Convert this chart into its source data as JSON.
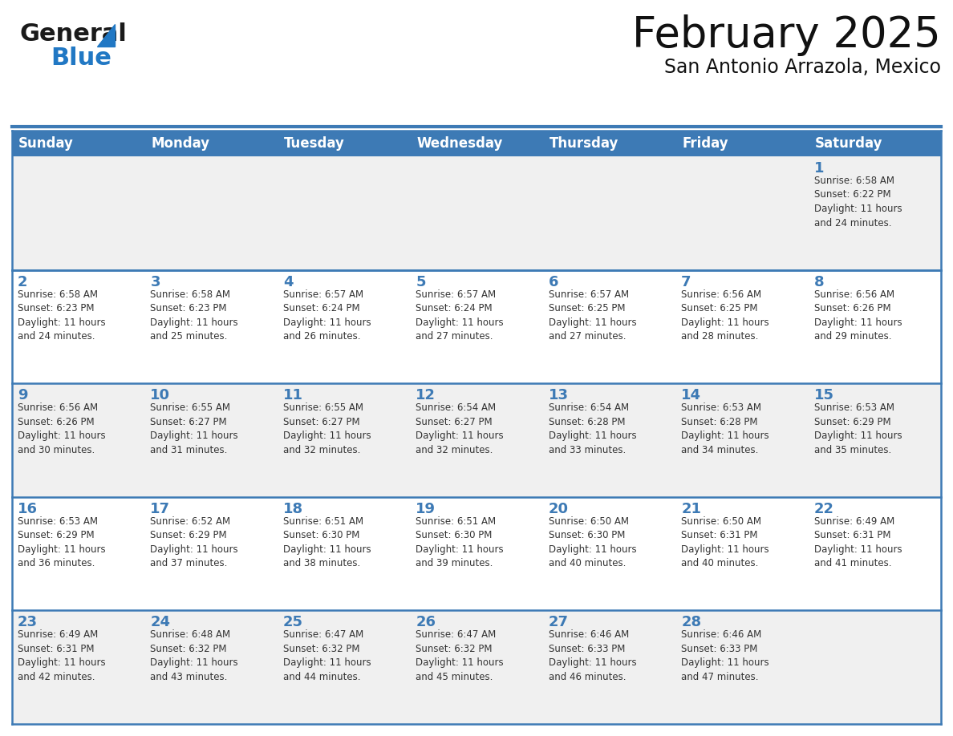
{
  "title": "February 2025",
  "subtitle": "San Antonio Arrazola, Mexico",
  "header_bg_color": "#3d7ab5",
  "header_text_color": "#ffffff",
  "row_bg_alt": "#f0f0f0",
  "row_bg_white": "#ffffff",
  "day_number_color": "#3d7ab5",
  "info_text_color": "#333333",
  "border_color": "#3d7ab5",
  "days_of_week": [
    "Sunday",
    "Monday",
    "Tuesday",
    "Wednesday",
    "Thursday",
    "Friday",
    "Saturday"
  ],
  "calendar_data": [
    [
      null,
      null,
      null,
      null,
      null,
      null,
      {
        "day": 1,
        "sunrise": "6:58 AM",
        "sunset": "6:22 PM",
        "daylight": "11 hours\nand 24 minutes."
      }
    ],
    [
      {
        "day": 2,
        "sunrise": "6:58 AM",
        "sunset": "6:23 PM",
        "daylight": "11 hours\nand 24 minutes."
      },
      {
        "day": 3,
        "sunrise": "6:58 AM",
        "sunset": "6:23 PM",
        "daylight": "11 hours\nand 25 minutes."
      },
      {
        "day": 4,
        "sunrise": "6:57 AM",
        "sunset": "6:24 PM",
        "daylight": "11 hours\nand 26 minutes."
      },
      {
        "day": 5,
        "sunrise": "6:57 AM",
        "sunset": "6:24 PM",
        "daylight": "11 hours\nand 27 minutes."
      },
      {
        "day": 6,
        "sunrise": "6:57 AM",
        "sunset": "6:25 PM",
        "daylight": "11 hours\nand 27 minutes."
      },
      {
        "day": 7,
        "sunrise": "6:56 AM",
        "sunset": "6:25 PM",
        "daylight": "11 hours\nand 28 minutes."
      },
      {
        "day": 8,
        "sunrise": "6:56 AM",
        "sunset": "6:26 PM",
        "daylight": "11 hours\nand 29 minutes."
      }
    ],
    [
      {
        "day": 9,
        "sunrise": "6:56 AM",
        "sunset": "6:26 PM",
        "daylight": "11 hours\nand 30 minutes."
      },
      {
        "day": 10,
        "sunrise": "6:55 AM",
        "sunset": "6:27 PM",
        "daylight": "11 hours\nand 31 minutes."
      },
      {
        "day": 11,
        "sunrise": "6:55 AM",
        "sunset": "6:27 PM",
        "daylight": "11 hours\nand 32 minutes."
      },
      {
        "day": 12,
        "sunrise": "6:54 AM",
        "sunset": "6:27 PM",
        "daylight": "11 hours\nand 32 minutes."
      },
      {
        "day": 13,
        "sunrise": "6:54 AM",
        "sunset": "6:28 PM",
        "daylight": "11 hours\nand 33 minutes."
      },
      {
        "day": 14,
        "sunrise": "6:53 AM",
        "sunset": "6:28 PM",
        "daylight": "11 hours\nand 34 minutes."
      },
      {
        "day": 15,
        "sunrise": "6:53 AM",
        "sunset": "6:29 PM",
        "daylight": "11 hours\nand 35 minutes."
      }
    ],
    [
      {
        "day": 16,
        "sunrise": "6:53 AM",
        "sunset": "6:29 PM",
        "daylight": "11 hours\nand 36 minutes."
      },
      {
        "day": 17,
        "sunrise": "6:52 AM",
        "sunset": "6:29 PM",
        "daylight": "11 hours\nand 37 minutes."
      },
      {
        "day": 18,
        "sunrise": "6:51 AM",
        "sunset": "6:30 PM",
        "daylight": "11 hours\nand 38 minutes."
      },
      {
        "day": 19,
        "sunrise": "6:51 AM",
        "sunset": "6:30 PM",
        "daylight": "11 hours\nand 39 minutes."
      },
      {
        "day": 20,
        "sunrise": "6:50 AM",
        "sunset": "6:30 PM",
        "daylight": "11 hours\nand 40 minutes."
      },
      {
        "day": 21,
        "sunrise": "6:50 AM",
        "sunset": "6:31 PM",
        "daylight": "11 hours\nand 40 minutes."
      },
      {
        "day": 22,
        "sunrise": "6:49 AM",
        "sunset": "6:31 PM",
        "daylight": "11 hours\nand 41 minutes."
      }
    ],
    [
      {
        "day": 23,
        "sunrise": "6:49 AM",
        "sunset": "6:31 PM",
        "daylight": "11 hours\nand 42 minutes."
      },
      {
        "day": 24,
        "sunrise": "6:48 AM",
        "sunset": "6:32 PM",
        "daylight": "11 hours\nand 43 minutes."
      },
      {
        "day": 25,
        "sunrise": "6:47 AM",
        "sunset": "6:32 PM",
        "daylight": "11 hours\nand 44 minutes."
      },
      {
        "day": 26,
        "sunrise": "6:47 AM",
        "sunset": "6:32 PM",
        "daylight": "11 hours\nand 45 minutes."
      },
      {
        "day": 27,
        "sunrise": "6:46 AM",
        "sunset": "6:33 PM",
        "daylight": "11 hours\nand 46 minutes."
      },
      {
        "day": 28,
        "sunrise": "6:46 AM",
        "sunset": "6:33 PM",
        "daylight": "11 hours\nand 47 minutes."
      },
      null
    ]
  ],
  "logo_text1": "General",
  "logo_text2": "Blue",
  "logo_color1": "#1a1a1a",
  "logo_color2": "#2178c4",
  "title_fontsize": 38,
  "subtitle_fontsize": 17,
  "header_fontsize": 12,
  "day_num_fontsize": 13,
  "info_fontsize": 8.5
}
